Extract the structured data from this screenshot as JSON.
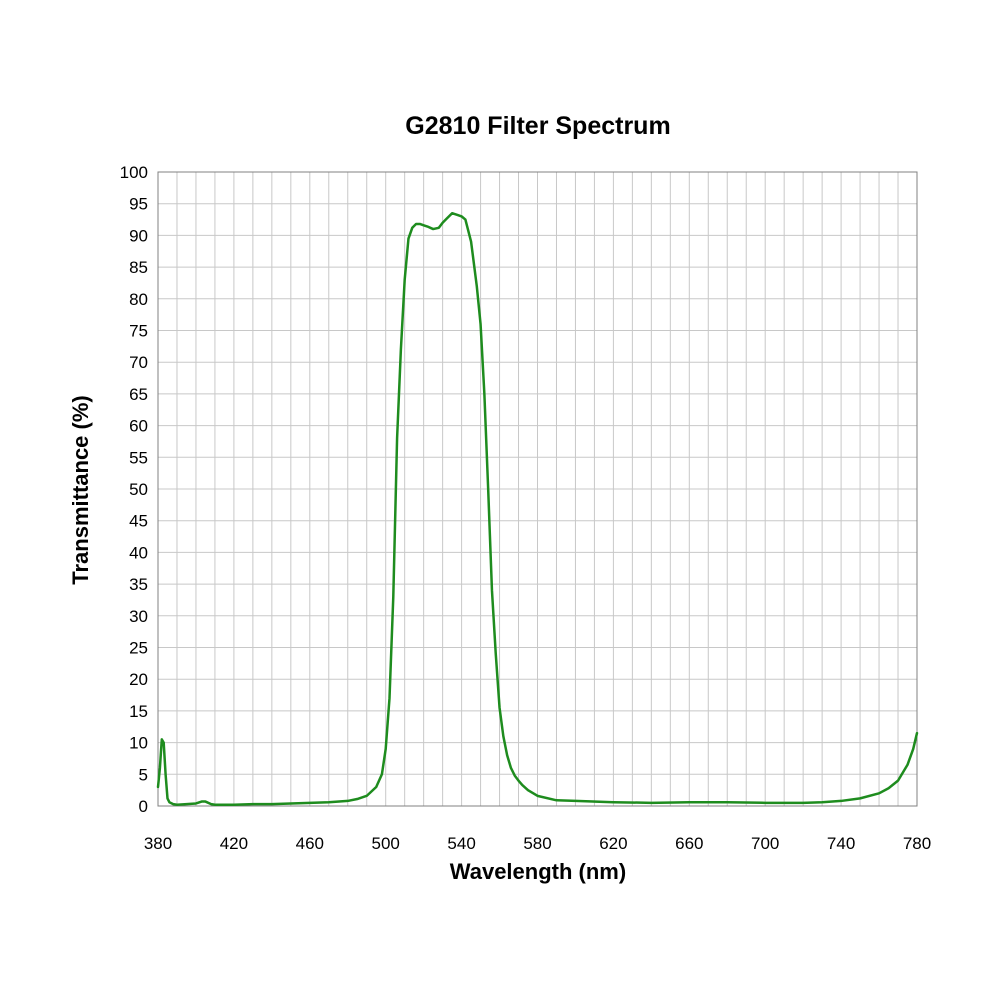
{
  "chart_data": {
    "type": "line",
    "title": "G2810 Filter Spectrum",
    "xlabel": "Wavelength (nm)",
    "ylabel": "Transmittance (%)",
    "xlim": [
      380,
      780
    ],
    "ylim": [
      0,
      100
    ],
    "x_tick_labels": [
      "380",
      "420",
      "460",
      "500",
      "540",
      "580",
      "620",
      "660",
      "700",
      "740",
      "780"
    ],
    "y_tick_labels": [
      "0",
      "5",
      "10",
      "15",
      "20",
      "25",
      "30",
      "35",
      "40",
      "45",
      "50",
      "55",
      "60",
      "65",
      "70",
      "75",
      "80",
      "85",
      "90",
      "95",
      "100"
    ],
    "grid": true,
    "legend": "none",
    "colors": {
      "series": "#1e8c1e",
      "grid": "#c8c8c8",
      "frame": "#808080"
    },
    "series": [
      {
        "x": [
          380,
          381,
          382,
          383,
          384,
          385,
          386,
          388,
          390,
          395,
          400,
          403,
          405,
          408,
          410,
          420,
          430,
          440,
          450,
          460,
          470,
          480,
          485,
          490,
          495,
          498,
          500,
          502,
          504,
          506,
          508,
          510,
          512,
          514,
          516,
          518,
          520,
          522,
          525,
          528,
          530,
          532,
          535,
          538,
          540,
          542,
          545,
          548,
          550,
          552,
          554,
          556,
          558,
          560,
          562,
          564,
          566,
          568,
          570,
          572,
          575,
          580,
          590,
          600,
          620,
          640,
          660,
          680,
          700,
          720,
          730,
          740,
          750,
          760,
          765,
          770,
          775,
          778,
          780
        ],
        "y": [
          3,
          6,
          10.5,
          10,
          5,
          1.2,
          0.6,
          0.3,
          0.2,
          0.3,
          0.4,
          0.7,
          0.7,
          0.3,
          0.2,
          0.2,
          0.3,
          0.3,
          0.4,
          0.5,
          0.6,
          0.8,
          1.1,
          1.6,
          3,
          5,
          9,
          17,
          33,
          58,
          72,
          83,
          89.5,
          91.2,
          91.8,
          91.8,
          91.6,
          91.4,
          91,
          91.2,
          92,
          92.6,
          93.5,
          93.2,
          93,
          92.5,
          89,
          82,
          76,
          65,
          50,
          34,
          24,
          15.5,
          11,
          8,
          6,
          4.8,
          4,
          3.3,
          2.5,
          1.6,
          0.9,
          0.8,
          0.6,
          0.5,
          0.6,
          0.6,
          0.5,
          0.5,
          0.6,
          0.8,
          1.2,
          2,
          2.8,
          4,
          6.5,
          9,
          11.5
        ]
      }
    ]
  }
}
